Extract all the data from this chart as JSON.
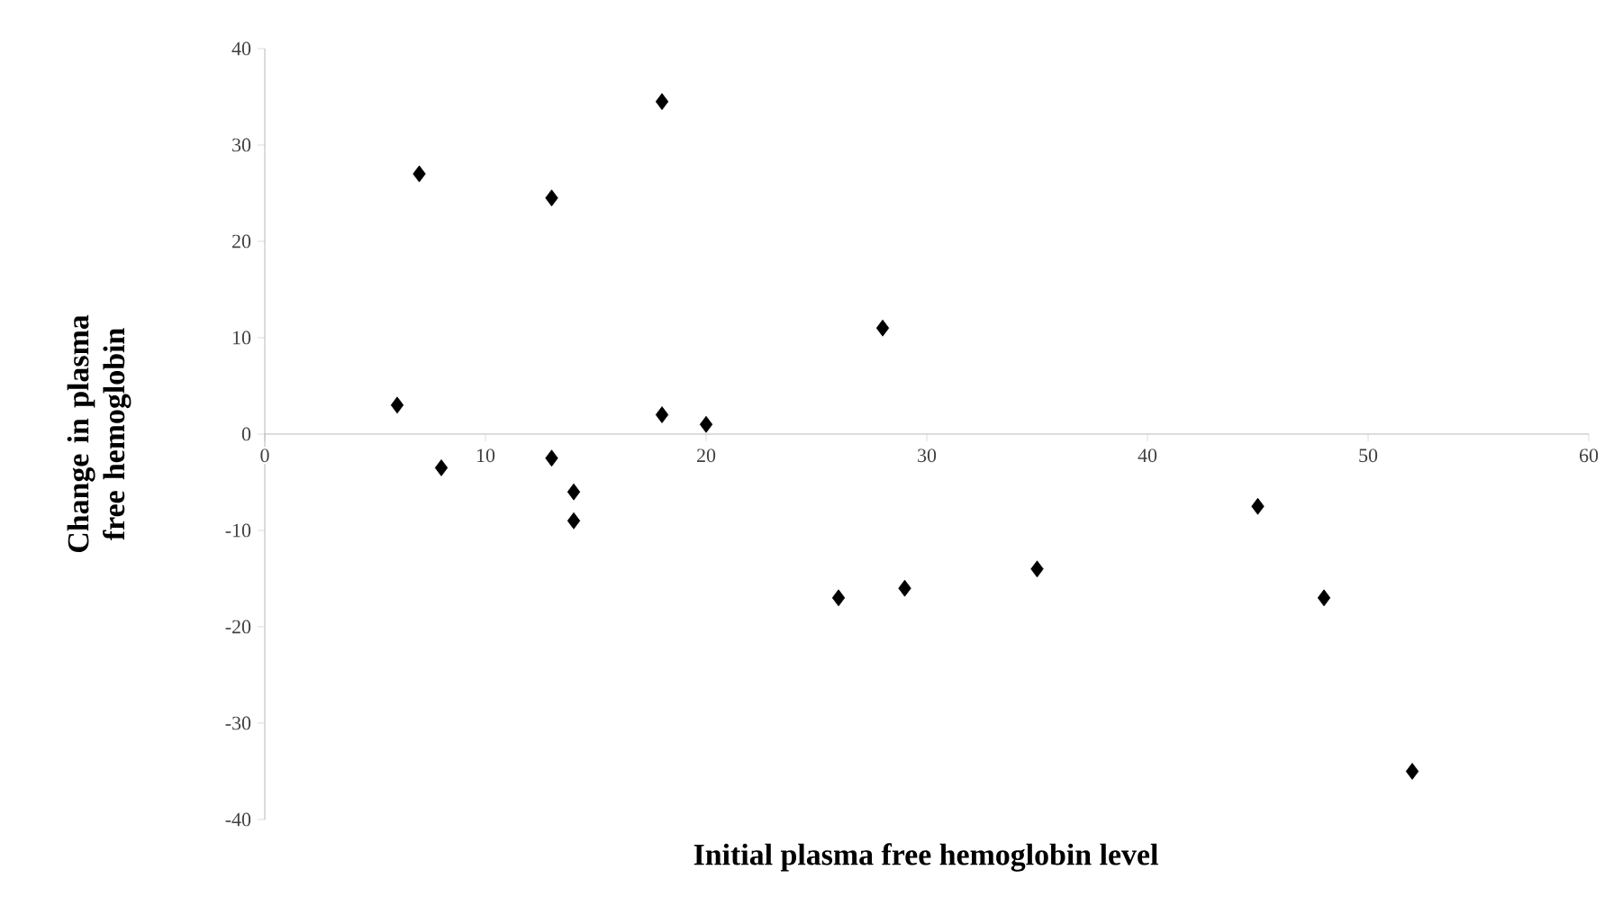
{
  "chart_data": {
    "type": "scatter",
    "xlabel": "Initial plasma free hemoglobin level",
    "ylabel": "Change in plasma free hemoglobin",
    "x": [
      6,
      7,
      8,
      13,
      13,
      14,
      14,
      18,
      18,
      20,
      26,
      28,
      29,
      35,
      45,
      48,
      52
    ],
    "series": [
      {
        "color": "#000000",
        "values": [
          3,
          27,
          -3.5,
          24.5,
          -2.5,
          -6,
          -9,
          34.5,
          2,
          1,
          -17,
          11,
          -16,
          -14,
          -7.5,
          -17,
          -35
        ]
      }
    ],
    "xlim": [
      0,
      60
    ],
    "xticks": [
      0,
      10,
      20,
      30,
      40,
      50,
      60
    ],
    "ylim": [
      -40,
      40
    ],
    "yticks": [
      -40,
      -30,
      -20,
      -10,
      0,
      10,
      20,
      30,
      40
    ],
    "marker": "diamond",
    "grid": false
  }
}
